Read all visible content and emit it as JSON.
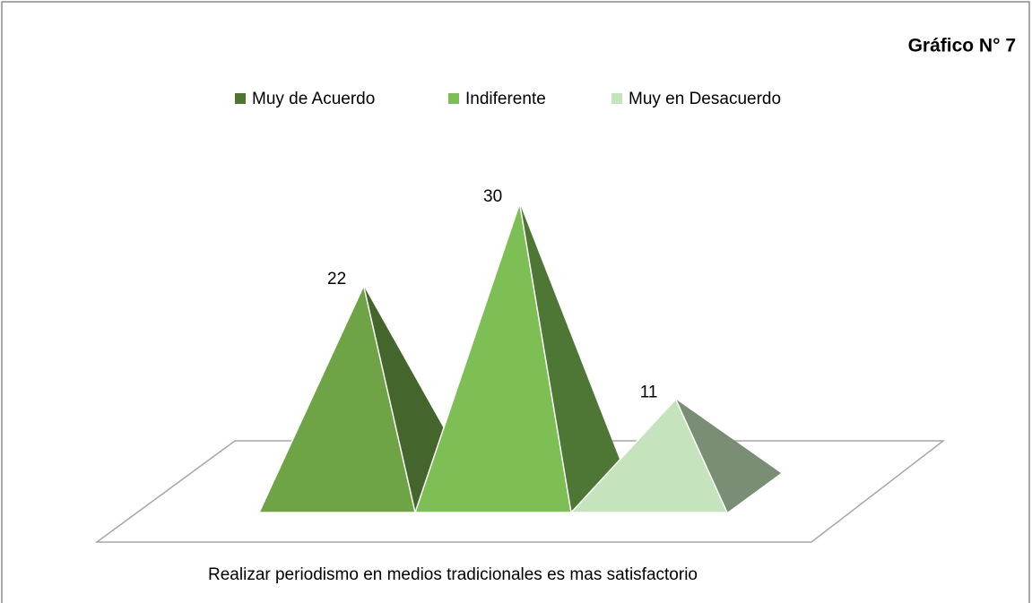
{
  "chart_data": {
    "type": "pyramid",
    "title": "Gráfico N° 7",
    "categories": [
      "Realizar periodismo en medios tradicionales es mas satisfactorio"
    ],
    "series": [
      {
        "name": "Muy de Acuerdo",
        "color": "#6ea346",
        "values": [
          22
        ]
      },
      {
        "name": "Indiferente",
        "color": "#7dbf55",
        "values": [
          30
        ]
      },
      {
        "name": "Muy en Desacuerdo",
        "color": "#c5e3bd",
        "values": [
          11
        ]
      }
    ],
    "legend": "top"
  }
}
